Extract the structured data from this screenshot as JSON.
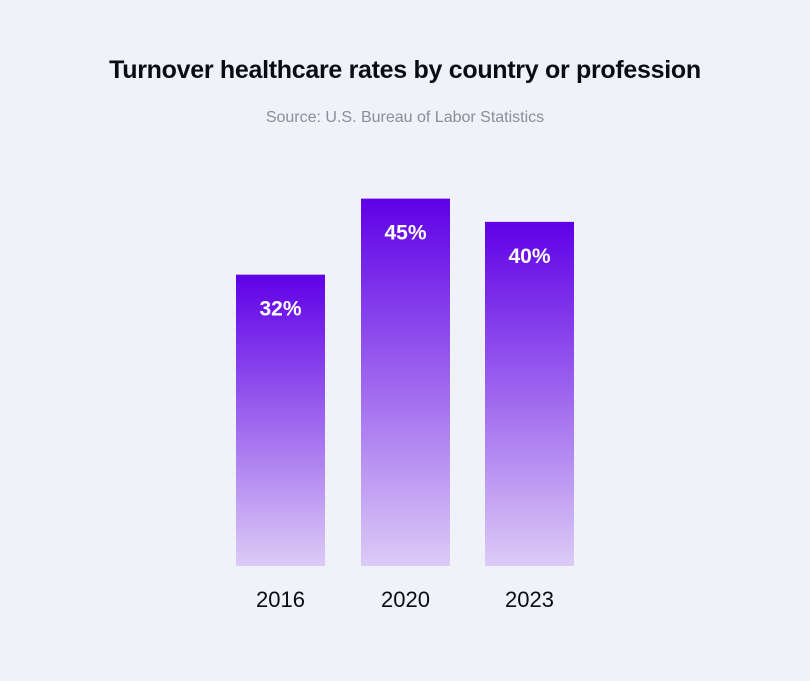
{
  "chart_data": {
    "type": "bar",
    "title": "Turnover healthcare rates by country or profession",
    "subtitle": "Source: U.S. Bureau of Labor Statistics",
    "categories": [
      "2016",
      "2020",
      "2023"
    ],
    "values": [
      32,
      45,
      40
    ],
    "data_labels": [
      "32%",
      "45%",
      "40%"
    ],
    "xlabel": "",
    "ylabel": "",
    "grid": false,
    "colors": {
      "bar_top": "#5f00e6",
      "bar_bottom": "#dccbf6",
      "background": "#eff2f8",
      "label": "#ffffff"
    }
  }
}
